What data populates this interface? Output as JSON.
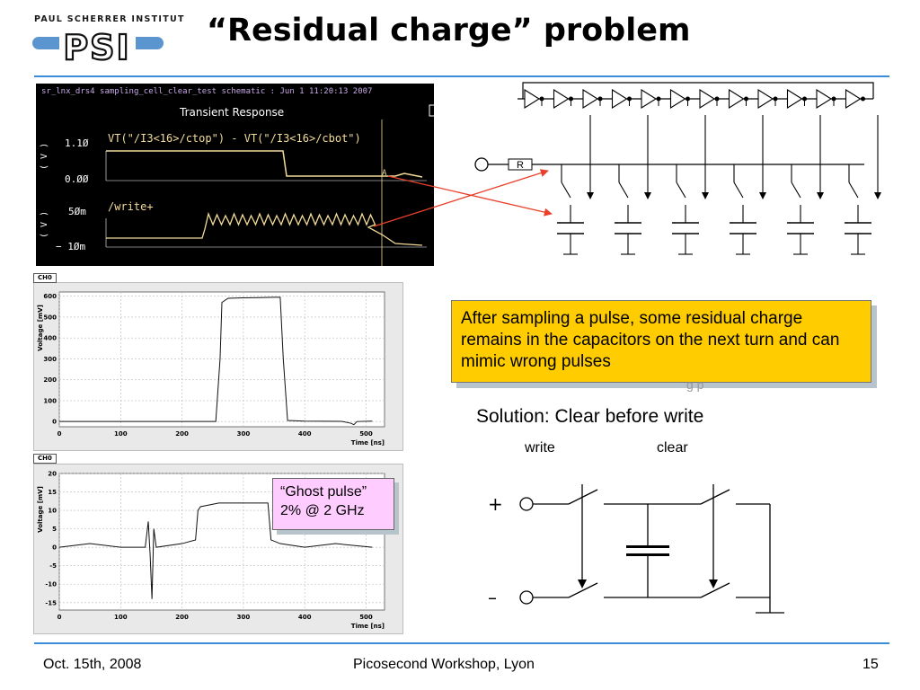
{
  "header": {
    "institute": "PAUL SCHERRER INSTITUT",
    "logo_letters": "PSI",
    "title": "“Residual charge” problem"
  },
  "simulation": {
    "window_title": "sr_lnx_drs4 sampling_cell_clear_test schematic : Jun  1 11:20:13 2007",
    "subtitle": "Transient Response",
    "trace1_label": "VT(\"/I3<16>/ctop\") - VT(\"/I3<16>/cbot\")",
    "trace1_ticks": [
      "1.1Ø",
      "0.ØØ"
    ],
    "trace2_label": "/write+",
    "trace2_ticks": [
      "5Øm",
      "− 1Øm"
    ],
    "axis_unit": "( V )",
    "marker": "A"
  },
  "schematic": {
    "resistor_label": "R"
  },
  "callout": {
    "text": "After sampling a pulse, some residual charge remains in the capacitors on the next turn and can mimic wrong pulses",
    "shadow_fragment": "g p"
  },
  "solution": {
    "heading": "Solution: Clear before write",
    "write_label": "write",
    "clear_label": "clear",
    "plus": "+",
    "minus": "–"
  },
  "ghost_box": {
    "line1": "“Ghost pulse”",
    "line2": "2% @ 2 GHz"
  },
  "chart_data": [
    {
      "type": "line",
      "tag": "CH0",
      "xlabel": "Time [ns]",
      "ylabel": "Voltage [mV]",
      "xlim": [
        0,
        530
      ],
      "ylim": [
        -25,
        620
      ],
      "xticks": [
        0,
        100,
        200,
        300,
        400,
        500
      ],
      "yticks": [
        0,
        100,
        200,
        300,
        400,
        500,
        600
      ],
      "grid": true,
      "series": [
        {
          "x": [
            0,
            255,
            262,
            265,
            275,
            300,
            325,
            350,
            360,
            365,
            372,
            400,
            460,
            475,
            480,
            485,
            510
          ],
          "y": [
            0,
            0,
            300,
            570,
            590,
            592,
            593,
            595,
            595,
            300,
            5,
            2,
            1,
            -8,
            -15,
            0,
            2
          ]
        }
      ]
    },
    {
      "type": "line",
      "tag": "CH0",
      "xlabel": "Time [ns]",
      "ylabel": "Voltage [mV]",
      "xlim": [
        0,
        530
      ],
      "ylim": [
        -17,
        20
      ],
      "xticks": [
        0,
        100,
        200,
        300,
        400,
        500
      ],
      "yticks": [
        -15,
        -10,
        -5,
        0,
        5,
        10,
        15,
        20
      ],
      "grid": true,
      "series": [
        {
          "x": [
            0,
            50,
            100,
            140,
            145,
            148,
            151,
            154,
            158,
            200,
            222,
            226,
            230,
            260,
            300,
            330,
            340,
            345,
            360,
            400,
            450,
            510
          ],
          "y": [
            0,
            1,
            0,
            0,
            7,
            -2,
            -14,
            5,
            0,
            1,
            2,
            10,
            11,
            12,
            12,
            12,
            12,
            2,
            1,
            0,
            1,
            0
          ]
        }
      ]
    }
  ],
  "footer": {
    "date": "Oct. 15th, 2008",
    "event": "Picosecond Workshop, Lyon",
    "page": "15"
  },
  "colors": {
    "accent": "#3b8bd6",
    "callout_bg": "#ffcc00",
    "ghost_bg": "#ffccff",
    "sim_trace": "#f3dc9a"
  }
}
